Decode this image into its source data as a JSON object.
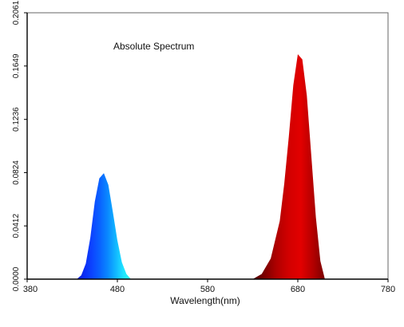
{
  "chart_data": {
    "type": "area",
    "title": "Absolute Spectrum",
    "xlabel": "Wavelength(nm)",
    "ylabel": "",
    "xlim": [
      380,
      780
    ],
    "ylim": [
      0,
      0.2061
    ],
    "x_ticks": [
      380,
      480,
      580,
      680,
      780
    ],
    "x_tick_labels": [
      "380",
      "480",
      "580",
      "680",
      "780"
    ],
    "y_ticks": [
      0,
      0.0412,
      0.0824,
      0.1236,
      0.1649,
      0.2061
    ],
    "y_tick_labels": [
      "0.0000",
      "0.0412",
      "0.0824",
      "0.1236",
      "0.1649",
      "0.2061"
    ],
    "grid": false,
    "series": [
      {
        "x": [
          435,
          440,
          445,
          450,
          455,
          460,
          465,
          470,
          475,
          480,
          485,
          490,
          495
        ],
        "y": [
          0,
          0.003,
          0.012,
          0.032,
          0.06,
          0.078,
          0.082,
          0.073,
          0.052,
          0.03,
          0.013,
          0.004,
          0
        ],
        "colors": [
          "#0a1fd0",
          "#0b2df5",
          "#0c45ff",
          "#0a63ff",
          "#0a88ff",
          "#11b5ff",
          "#1fe3ff",
          "#2ff7f1"
        ]
      },
      {
        "x": [
          630,
          640,
          650,
          660,
          665,
          670,
          675,
          680,
          685,
          690,
          695,
          700,
          705,
          710
        ],
        "y": [
          0,
          0.004,
          0.016,
          0.045,
          0.074,
          0.11,
          0.15,
          0.174,
          0.17,
          0.142,
          0.095,
          0.048,
          0.014,
          0
        ],
        "colors": [
          "#4d0000",
          "#7d0000",
          "#b00000",
          "#d20000",
          "#e20000",
          "#b40000",
          "#790000"
        ]
      }
    ]
  }
}
